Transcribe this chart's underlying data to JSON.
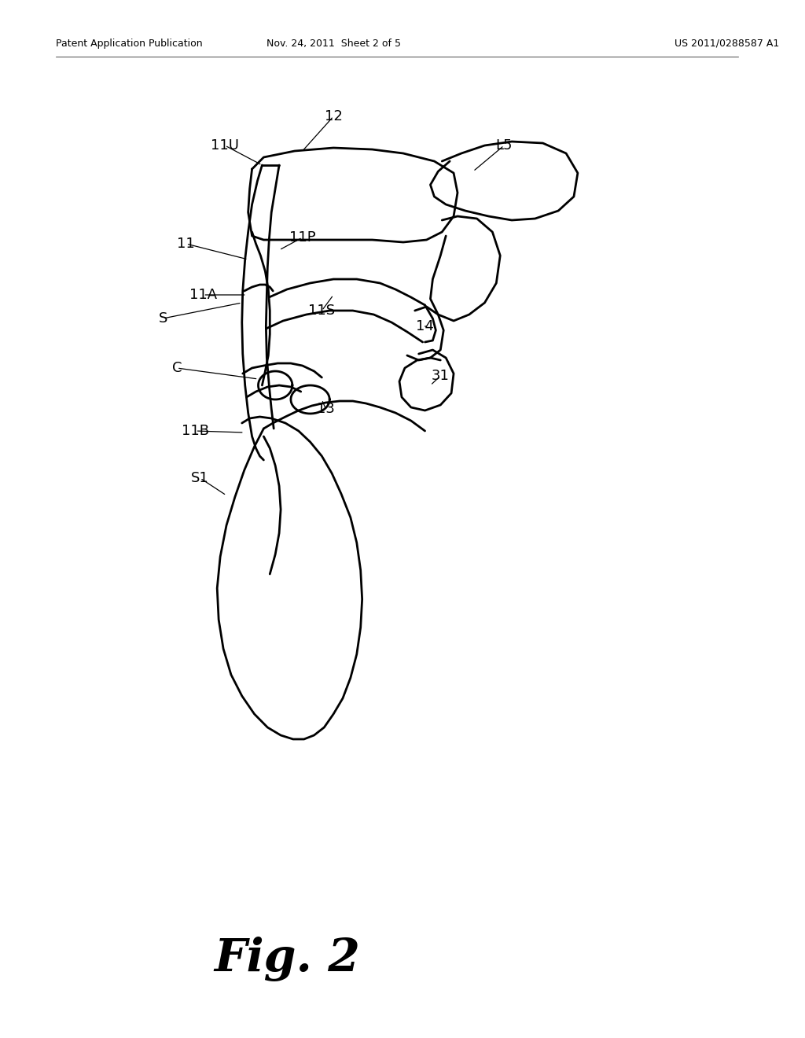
{
  "background_color": "#ffffff",
  "line_color": "#000000",
  "line_width": 2.0,
  "header_left": "Patent Application Publication",
  "header_center": "Nov. 24, 2011  Sheet 2 of 5",
  "header_right": "US 2011/0288587 A1",
  "figure_label": "Fig. 2"
}
